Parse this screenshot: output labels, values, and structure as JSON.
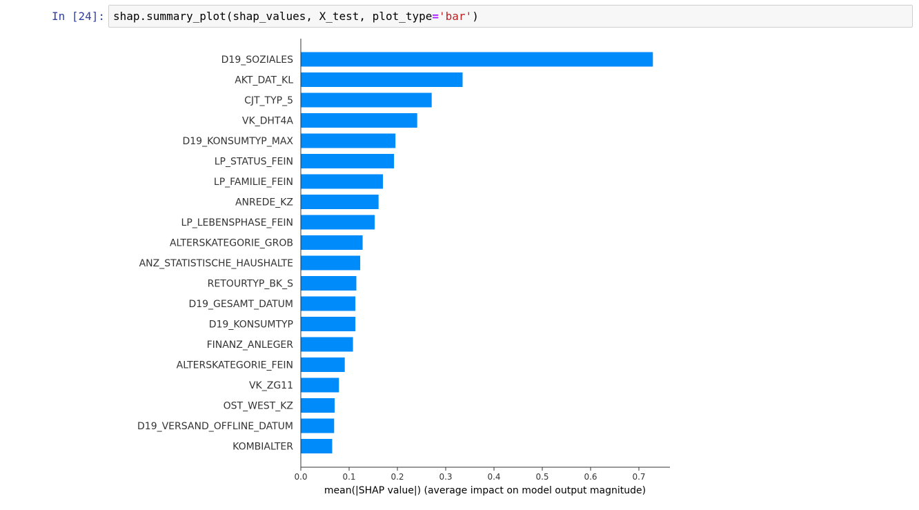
{
  "cell": {
    "prompt": "In [24]:",
    "code": {
      "func": "shap.summary_plot(shap_values, X_test, plot_type",
      "op": "=",
      "arg": "'bar'",
      "close": ")"
    }
  },
  "chart_data": {
    "type": "bar",
    "orientation": "horizontal",
    "categories": [
      "D19_SOZIALES",
      "AKT_DAT_KL",
      "CJT_TYP_5",
      "VK_DHT4A",
      "D19_KONSUMTYP_MAX",
      "LP_STATUS_FEIN",
      "LP_FAMILIE_FEIN",
      "ANREDE_KZ",
      "LP_LEBENSPHASE_FEIN",
      "ALTERSKATEGORIE_GROB",
      "ANZ_STATISTISCHE_HAUSHALTE",
      "RETOURTYP_BK_S",
      "D19_GESAMT_DATUM",
      "D19_KONSUMTYP",
      "FINANZ_ANLEGER",
      "ALTERSKATEGORIE_FEIN",
      "VK_ZG11",
      "OST_WEST_KZ",
      "D19_VERSAND_OFFLINE_DATUM",
      "KOMBIALTER"
    ],
    "values": [
      0.729,
      0.335,
      0.271,
      0.241,
      0.196,
      0.193,
      0.17,
      0.161,
      0.153,
      0.128,
      0.123,
      0.115,
      0.113,
      0.113,
      0.108,
      0.091,
      0.079,
      0.07,
      0.069,
      0.065
    ],
    "xlabel": "mean(|SHAP value|) (average impact on model output magnitude)",
    "ylabel": "",
    "xlim": [
      0,
      0.765
    ],
    "xticks": [
      "0.0",
      "0.1",
      "0.2",
      "0.3",
      "0.4",
      "0.5",
      "0.6",
      "0.7"
    ],
    "bar_color": "#008bfb",
    "grid": false
  }
}
